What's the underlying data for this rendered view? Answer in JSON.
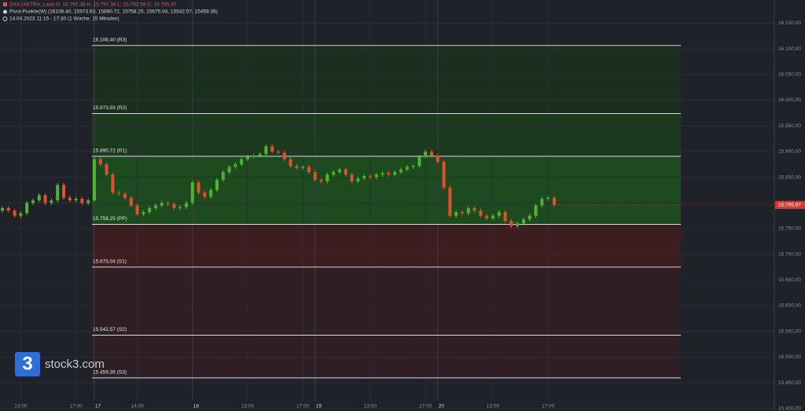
{
  "chart_data": {
    "type": "candlestick",
    "header": [
      "DAX (XETRA, Last)   O: 15.797,38   H: 15.797,38   L: 15.792,58   C: 15.795,97",
      "Pivot-Punkte(W)  (16106.40,  15973.93,  15890.72,  15758.25,  15675.04,  15542.57,  15459.36)",
      "14.04.2023 11:15 - 17:30   (1 Woche, 15 Minuten)"
    ],
    "watermark": "stock3.com",
    "categories": [
      null,
      null,
      null,
      "13:00",
      null,
      null,
      null,
      null,
      null,
      null,
      null,
      null,
      "17:00",
      null,
      null,
      "17",
      null,
      null,
      null,
      null,
      null,
      null,
      "14:00",
      null,
      null,
      null,
      null,
      null,
      null,
      null,
      null,
      "18",
      null,
      null,
      null,
      null,
      null,
      null,
      null,
      null,
      "13:00",
      null,
      null,
      null,
      null,
      null,
      null,
      null,
      null,
      "17:00",
      null,
      "19",
      null,
      null,
      null,
      null,
      null,
      null,
      null,
      null,
      "13:00",
      null,
      null,
      null,
      null,
      null,
      null,
      null,
      null,
      "17:00",
      null,
      "20",
      null,
      null,
      null,
      null,
      null,
      null,
      null,
      null,
      "13:00",
      null,
      null,
      null,
      null,
      null,
      null,
      null,
      null,
      "17:00",
      null
    ],
    "open": [
      15785,
      15790,
      15785,
      15775,
      15780,
      15800,
      15805,
      15815,
      15800,
      15805,
      15835,
      15810,
      15805,
      15808,
      15800,
      15805,
      15885,
      15875,
      15855,
      15820,
      15818,
      15810,
      15795,
      15778,
      15782,
      15790,
      15795,
      15800,
      15798,
      15790,
      15792,
      15800,
      15840,
      15820,
      15812,
      15825,
      15845,
      15860,
      15870,
      15875,
      15885,
      15890,
      15892,
      15895,
      15910,
      15900,
      15898,
      15885,
      15872,
      15868,
      15870,
      15860,
      15845,
      15842,
      15855,
      15860,
      15865,
      15855,
      15842,
      15848,
      15852,
      15850,
      15855,
      15858,
      15855,
      15860,
      15865,
      15870,
      15872,
      15890,
      15900,
      15892,
      15880,
      15830,
      15775,
      15782,
      15780,
      15790,
      15785,
      15775,
      15770,
      15775,
      15782,
      15765,
      15755,
      15760,
      15768,
      15775,
      15795,
      15808,
      15810
    ],
    "high": [
      15794,
      15794,
      15789,
      15784,
      15804,
      15809,
      15819,
      15819,
      15809,
      15839,
      15839,
      15814,
      15812,
      15812,
      15809,
      15889,
      15889,
      15879,
      15859,
      15824,
      15822,
      15814,
      15799,
      15786,
      15794,
      15799,
      15804,
      15804,
      15802,
      15796,
      15804,
      15844,
      15844,
      15824,
      15829,
      15849,
      15864,
      15874,
      15879,
      15889,
      15894,
      15896,
      15899,
      15914,
      15914,
      15904,
      15902,
      15889,
      15876,
      15874,
      15874,
      15864,
      15849,
      15859,
      15864,
      15869,
      15869,
      15859,
      15852,
      15856,
      15856,
      15859,
      15862,
      15862,
      15864,
      15869,
      15874,
      15876,
      15894,
      15904,
      15904,
      15896,
      15884,
      15834,
      15786,
      15786,
      15794,
      15794,
      15789,
      15779,
      15779,
      15786,
      15786,
      15769,
      15764,
      15772,
      15779,
      15799,
      15812,
      15814,
      15814
    ],
    "low": [
      15781,
      15781,
      15771,
      15771,
      15776,
      15796,
      15801,
      15796,
      15796,
      15801,
      15806,
      15801,
      15801,
      15796,
      15796,
      15801,
      15871,
      15851,
      15816,
      15814,
      15806,
      15791,
      15774,
      15774,
      15778,
      15786,
      15791,
      15794,
      15786,
      15786,
      15788,
      15796,
      15816,
      15808,
      15808,
      15821,
      15841,
      15856,
      15866,
      15871,
      15881,
      15886,
      15888,
      15891,
      15896,
      15894,
      15881,
      15868,
      15864,
      15864,
      15856,
      15841,
      15838,
      15838,
      15851,
      15856,
      15851,
      15838,
      15838,
      15844,
      15846,
      15846,
      15851,
      15851,
      15851,
      15856,
      15861,
      15866,
      15868,
      15886,
      15888,
      15876,
      15826,
      15771,
      15771,
      15776,
      15776,
      15781,
      15771,
      15766,
      15766,
      15771,
      15761,
      15751,
      15751,
      15756,
      15764,
      15771,
      15791,
      15804,
      15792
    ],
    "close": [
      15790,
      15785,
      15775,
      15780,
      15800,
      15805,
      15815,
      15800,
      15805,
      15835,
      15810,
      15805,
      15808,
      15800,
      15805,
      15885,
      15875,
      15855,
      15820,
      15818,
      15810,
      15795,
      15778,
      15782,
      15790,
      15795,
      15800,
      15798,
      15790,
      15792,
      15800,
      15840,
      15820,
      15812,
      15825,
      15845,
      15860,
      15870,
      15875,
      15885,
      15890,
      15892,
      15895,
      15910,
      15900,
      15898,
      15885,
      15872,
      15868,
      15870,
      15860,
      15845,
      15842,
      15855,
      15860,
      15865,
      15855,
      15842,
      15848,
      15852,
      15850,
      15855,
      15858,
      15855,
      15860,
      15865,
      15870,
      15872,
      15890,
      15900,
      15892,
      15880,
      15830,
      15775,
      15782,
      15780,
      15790,
      15785,
      15775,
      15770,
      15775,
      15782,
      15765,
      15755,
      15760,
      15768,
      15775,
      15795,
      15808,
      15810,
      15796
    ],
    "up_color": "#4fb52c",
    "down_color": "#e2502f",
    "levels": [
      {
        "value": 16106.4,
        "label": "16.106,40 (R3)"
      },
      {
        "value": 15973.93,
        "label": "15.973,93 (R2)"
      },
      {
        "value": 15890.72,
        "label": "15.890,72 (R1)"
      },
      {
        "value": 15758.25,
        "label": "15.758,25 (PP)"
      },
      {
        "value": 15675.04,
        "label": "15.675,04 (S1)"
      },
      {
        "value": 15542.57,
        "label": "15.542,57 (S2)"
      },
      {
        "value": 15459.36,
        "label": "15.459,36 (S3)"
      }
    ],
    "last_price": {
      "value": 15795.97,
      "label": "15.795,97"
    },
    "ylim": [
      15395,
      16195
    ],
    "yticks": [
      {
        "value": 15400,
        "label": "15.400,00"
      },
      {
        "value": 15450,
        "label": "15.450,00"
      },
      {
        "value": 15500,
        "label": "15.500,00"
      },
      {
        "value": 15550,
        "label": "15.550,00"
      },
      {
        "value": 15600,
        "label": "15.600,00"
      },
      {
        "value": 15650,
        "label": "15.650,00"
      },
      {
        "value": 15700,
        "label": "15.700,00"
      },
      {
        "value": 15750,
        "label": "15.750,00"
      },
      {
        "value": 15800,
        "label": "15.800,00"
      },
      {
        "value": 15850,
        "label": "15.850,00"
      },
      {
        "value": 15900,
        "label": "15.900,00"
      },
      {
        "value": 15950,
        "label": "15.950,00"
      },
      {
        "value": 16000,
        "label": "16.000,00"
      },
      {
        "value": 16050,
        "label": "16.050,00"
      },
      {
        "value": 16100,
        "label": "16.100,00"
      },
      {
        "value": 16150,
        "label": "16.150,00"
      }
    ],
    "grid": true
  }
}
